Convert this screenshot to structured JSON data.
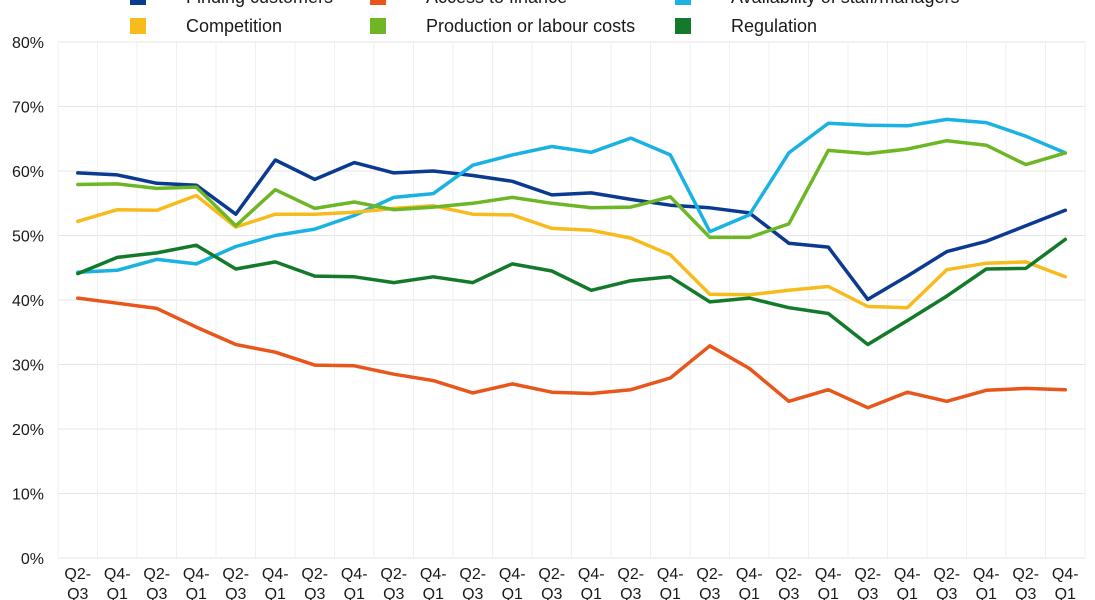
{
  "chart_data": {
    "type": "line",
    "title": "",
    "xlabel": "",
    "ylabel": "",
    "ylim": [
      0,
      80
    ],
    "y_ticks": [
      0,
      10,
      20,
      30,
      40,
      50,
      60,
      70,
      80
    ],
    "y_tick_labels": [
      "0%",
      "10%",
      "20%",
      "30%",
      "40%",
      "50%",
      "60%",
      "70%",
      "80%"
    ],
    "grid": true,
    "legend_position": "top",
    "categories": [
      [
        "Q2-",
        "Q3"
      ],
      [
        "Q4-",
        "Q1"
      ],
      [
        "Q2-",
        "Q3"
      ],
      [
        "Q4-",
        "Q1"
      ],
      [
        "Q2-",
        "Q3"
      ],
      [
        "Q4-",
        "Q1"
      ],
      [
        "Q2-",
        "Q3"
      ],
      [
        "Q4-",
        "Q1"
      ],
      [
        "Q2-",
        "Q3"
      ],
      [
        "Q4-",
        "Q1"
      ],
      [
        "Q2-",
        "Q3"
      ],
      [
        "Q4-",
        "Q1"
      ],
      [
        "Q2-",
        "Q3"
      ],
      [
        "Q4-",
        "Q1"
      ],
      [
        "Q2-",
        "Q3"
      ],
      [
        "Q4-",
        "Q1"
      ],
      [
        "Q2-",
        "Q3"
      ],
      [
        "Q4-",
        "Q1"
      ],
      [
        "Q2-",
        "Q3"
      ],
      [
        "Q4-",
        "Q1"
      ],
      [
        "Q2-",
        "Q3"
      ],
      [
        "Q4-",
        "Q1"
      ],
      [
        "Q2-",
        "Q3"
      ],
      [
        "Q4-",
        "Q1"
      ],
      [
        "Q2-",
        "Q3"
      ],
      [
        "Q4-",
        "Q1"
      ]
    ],
    "series": [
      {
        "name": "Finding customers",
        "color": "#0b3a91",
        "values": [
          59.7,
          59.4,
          58.1,
          57.8,
          53.3,
          61.7,
          58.7,
          61.3,
          59.7,
          60.0,
          59.3,
          58.4,
          56.3,
          56.6,
          55.6,
          54.7,
          54.3,
          53.5,
          48.8,
          48.2,
          40.1,
          43.7,
          47.5,
          49.1,
          51.5,
          53.9
        ]
      },
      {
        "name": "Access to finance",
        "color": "#e8561b",
        "values": [
          40.3,
          39.5,
          38.7,
          35.8,
          33.1,
          31.9,
          29.9,
          29.8,
          28.5,
          27.5,
          25.6,
          27.0,
          25.7,
          25.5,
          26.1,
          27.9,
          32.9,
          29.4,
          24.3,
          26.1,
          23.3,
          25.7,
          24.3,
          26.0,
          26.3,
          26.1
        ]
      },
      {
        "name": "Availability of staff/managers",
        "color": "#1ab2e3",
        "values": [
          44.3,
          44.6,
          46.3,
          45.6,
          48.3,
          50.0,
          51.0,
          53.1,
          55.9,
          56.5,
          60.9,
          62.5,
          63.8,
          62.9,
          65.1,
          62.5,
          50.6,
          53.2,
          62.8,
          67.4,
          67.1,
          67.0,
          68.0,
          67.5,
          65.4,
          62.8
        ]
      },
      {
        "name": "Competition",
        "color": "#f8bb1e",
        "values": [
          52.2,
          54.0,
          53.9,
          56.2,
          51.3,
          53.3,
          53.3,
          53.6,
          54.2,
          54.6,
          53.3,
          53.2,
          51.1,
          50.8,
          49.6,
          47.0,
          40.9,
          40.8,
          41.5,
          42.1,
          39.0,
          38.8,
          44.7,
          45.7,
          45.9,
          43.6
        ]
      },
      {
        "name": "Production or labour costs",
        "color": "#6db625",
        "values": [
          57.9,
          58.0,
          57.3,
          57.5,
          51.5,
          57.1,
          54.2,
          55.2,
          54.0,
          54.4,
          55.0,
          55.9,
          55.0,
          54.3,
          54.4,
          56.0,
          49.7,
          49.7,
          51.8,
          63.2,
          62.7,
          63.4,
          64.7,
          64.0,
          61.0,
          62.8
        ]
      },
      {
        "name": "Regulation",
        "color": "#127a2a",
        "values": [
          44.1,
          46.6,
          47.3,
          48.5,
          44.8,
          45.9,
          43.7,
          43.6,
          42.7,
          43.6,
          42.7,
          45.6,
          44.5,
          41.5,
          43.0,
          43.6,
          39.7,
          40.3,
          38.8,
          37.9,
          33.1,
          36.8,
          40.6,
          44.8,
          44.9,
          49.4
        ]
      }
    ]
  }
}
